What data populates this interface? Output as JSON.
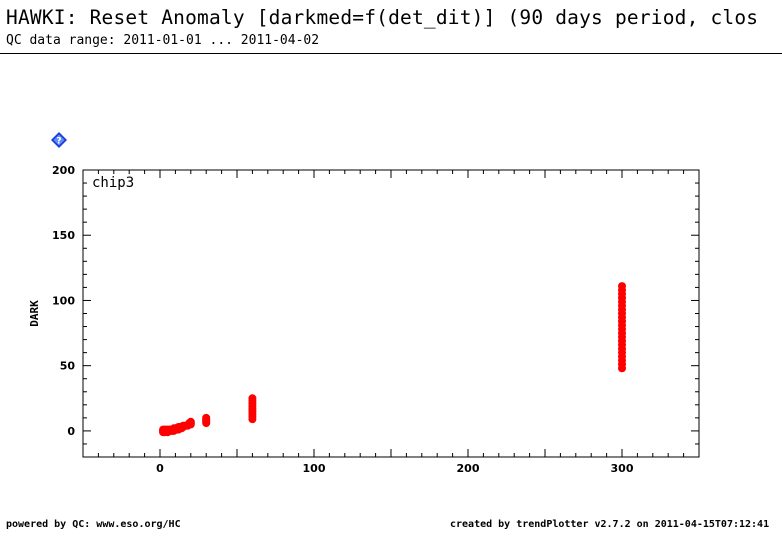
{
  "header": {
    "title": "HAWKI: Reset Anomaly [darkmed=f(det_dit)] (90 days period, clos",
    "subtitle": "QC data range: 2011-01-01 ... 2011-04-02"
  },
  "help_icon": {
    "name": "help-icon",
    "color": "#1a3fd6"
  },
  "footer": {
    "left": "powered by QC: www.eso.org/HC",
    "right": "created by trendPlotter v2.7.2 on 2011-04-15T07:12:41"
  },
  "chart_data": {
    "type": "scatter",
    "title": "",
    "panel_label": "chip3",
    "xlabel": "",
    "ylabel": "DARK",
    "xlim": [
      -50,
      350
    ],
    "ylim": [
      -20,
      200
    ],
    "x_ticks": [
      0,
      100,
      200,
      300
    ],
    "y_ticks": [
      0,
      50,
      100,
      150,
      200
    ],
    "grid": false,
    "marker_color": "#ff0000",
    "series": [
      {
        "points": [
          [
            2,
            -1
          ],
          [
            2,
            0
          ],
          [
            2,
            1
          ],
          [
            3,
            -1
          ],
          [
            3,
            0
          ],
          [
            3,
            1
          ],
          [
            4,
            0
          ],
          [
            4,
            1
          ],
          [
            5,
            -1
          ],
          [
            5,
            0
          ],
          [
            5,
            1
          ],
          [
            6,
            0
          ],
          [
            6,
            1
          ],
          [
            7,
            0
          ],
          [
            7,
            1
          ],
          [
            8,
            0
          ],
          [
            8,
            1
          ],
          [
            9,
            0
          ],
          [
            9,
            1
          ],
          [
            9,
            2
          ],
          [
            10,
            1
          ],
          [
            10,
            2
          ],
          [
            11,
            1
          ],
          [
            11,
            2
          ],
          [
            12,
            1
          ],
          [
            12,
            2
          ],
          [
            12,
            3
          ],
          [
            13,
            2
          ],
          [
            13,
            3
          ],
          [
            14,
            2
          ],
          [
            14,
            3
          ],
          [
            15,
            3
          ],
          [
            15,
            4
          ],
          [
            16,
            4
          ],
          [
            17,
            4
          ],
          [
            18,
            4
          ],
          [
            19,
            5
          ],
          [
            19,
            6
          ],
          [
            20,
            5
          ],
          [
            20,
            6
          ],
          [
            20,
            7
          ],
          [
            30,
            6
          ],
          [
            30,
            7
          ],
          [
            30,
            8
          ],
          [
            30,
            9
          ],
          [
            30,
            10
          ],
          [
            60,
            9
          ],
          [
            60,
            11
          ],
          [
            60,
            13
          ],
          [
            60,
            15
          ],
          [
            60,
            17
          ],
          [
            60,
            19
          ],
          [
            60,
            21
          ],
          [
            60,
            23
          ],
          [
            60,
            25
          ],
          [
            300,
            48
          ],
          [
            300,
            51
          ],
          [
            300,
            54
          ],
          [
            300,
            57
          ],
          [
            300,
            60
          ],
          [
            300,
            63
          ],
          [
            300,
            66
          ],
          [
            300,
            69
          ],
          [
            300,
            72
          ],
          [
            300,
            75
          ],
          [
            300,
            78
          ],
          [
            300,
            81
          ],
          [
            300,
            84
          ],
          [
            300,
            87
          ],
          [
            300,
            90
          ],
          [
            300,
            93
          ],
          [
            300,
            96
          ],
          [
            300,
            99
          ],
          [
            300,
            102
          ],
          [
            300,
            105
          ],
          [
            300,
            108
          ],
          [
            300,
            111
          ]
        ]
      }
    ]
  }
}
